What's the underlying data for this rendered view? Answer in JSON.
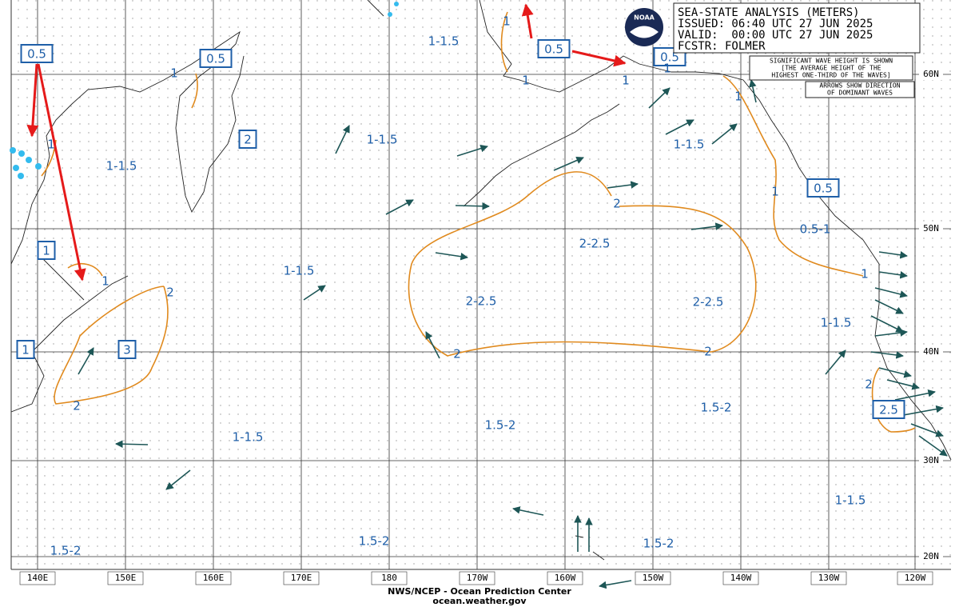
{
  "header": {
    "title": "SEA-STATE ANALYSIS (METERS)",
    "issued": "ISSUED: 06:40 UTC 27 JUN 2025",
    "valid": "VALID:  00:00 UTC 27 JUN 2025",
    "forecaster": "FCSTR: FOLMER"
  },
  "logo": "NOAA",
  "notes": {
    "wave_height": [
      "SIGNIFICANT WAVE HEIGHT IS SHOWN",
      "[THE AVERAGE HEIGHT OF THE",
      "HIGHEST ONE-THIRD OF THE WAVES]"
    ],
    "arrows": [
      "ARROWS SHOW DIRECTION",
      "OF DOMINANT WAVES"
    ]
  },
  "longitude_labels": [
    "140E",
    "150E",
    "160E",
    "170E",
    "180",
    "170W",
    "160W",
    "150W",
    "140W",
    "130W",
    "120W"
  ],
  "latitude_labels": [
    "60N",
    "50N",
    "40N",
    "30N",
    "20N"
  ],
  "region_labels": [
    "1-1.5",
    "1-1.5",
    "1-1.5",
    "1-1.5",
    "1-1.5",
    "2-2.5",
    "2-2.5",
    "2-2.5",
    "0.5-1",
    "1-1.5",
    "1.5-2",
    "1.5-2",
    "1-1.5",
    "1-1.5",
    "1.5-2",
    "1.5-2",
    "1.5-2"
  ],
  "boxed_labels": [
    "0.5",
    "0.5",
    "2",
    "0.5",
    "0.5",
    "0.5",
    "1",
    "1",
    "3",
    "2.5"
  ],
  "contour_labels": [
    "1",
    "1",
    "1",
    "1",
    "1",
    "1",
    "1",
    "1",
    "1",
    "1",
    "2",
    "2",
    "2",
    "2",
    "2",
    "2"
  ],
  "footer": {
    "agency": "NWS/NCEP - Ocean Prediction Center",
    "website": "ocean.weather.gov"
  }
}
